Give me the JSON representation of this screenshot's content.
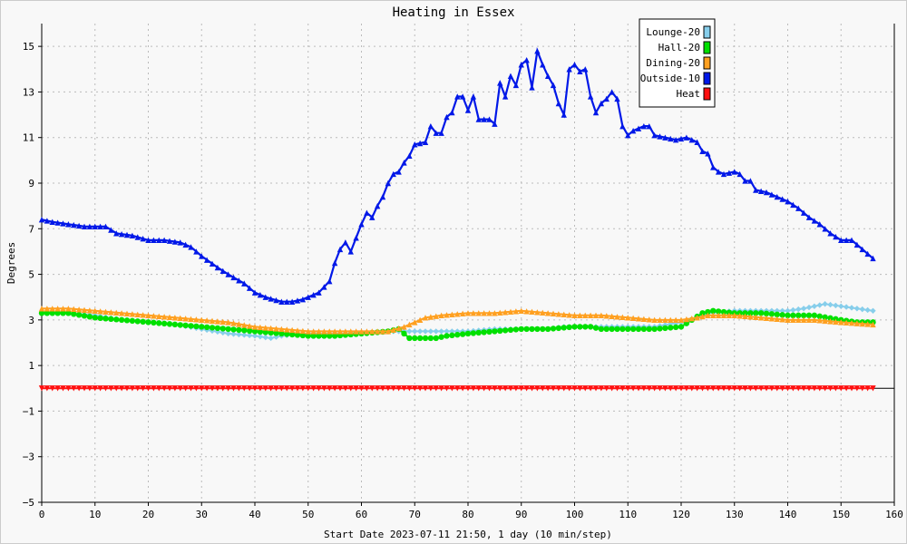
{
  "chart_data": {
    "type": "line",
    "title": "Heating in Essex",
    "xlabel": "Start Date 2023-07-11 21:50, 1 day (10 min/step)",
    "ylabel": "Degrees",
    "xlim": [
      0,
      160
    ],
    "ylim": [
      -5,
      16
    ],
    "x_ticks": [
      0,
      10,
      20,
      30,
      40,
      50,
      60,
      70,
      80,
      90,
      100,
      110,
      120,
      130,
      140,
      150,
      160
    ],
    "y_ticks": [
      -5,
      -3,
      -1,
      1,
      3,
      5,
      7,
      9,
      11,
      13,
      15
    ],
    "grid": true,
    "legend_position": "top-right",
    "series": [
      {
        "name": "Lounge-20",
        "color": "#87ceeb",
        "marker": "diamond",
        "points": [
          [
            0,
            3.3
          ],
          [
            5,
            3.3
          ],
          [
            10,
            3.2
          ],
          [
            15,
            3.0
          ],
          [
            20,
            2.9
          ],
          [
            25,
            2.8
          ],
          [
            30,
            2.6
          ],
          [
            35,
            2.4
          ],
          [
            40,
            2.3
          ],
          [
            43,
            2.2
          ],
          [
            45,
            2.3
          ],
          [
            50,
            2.4
          ],
          [
            55,
            2.4
          ],
          [
            60,
            2.4
          ],
          [
            65,
            2.5
          ],
          [
            70,
            2.5
          ],
          [
            75,
            2.5
          ],
          [
            80,
            2.5
          ],
          [
            85,
            2.6
          ],
          [
            90,
            2.6
          ],
          [
            95,
            2.6
          ],
          [
            98,
            2.7
          ],
          [
            100,
            2.7
          ],
          [
            105,
            2.7
          ],
          [
            110,
            2.7
          ],
          [
            115,
            2.7
          ],
          [
            120,
            2.9
          ],
          [
            123,
            3.1
          ],
          [
            125,
            3.3
          ],
          [
            130,
            3.4
          ],
          [
            135,
            3.4
          ],
          [
            140,
            3.4
          ],
          [
            143,
            3.5
          ],
          [
            145,
            3.6
          ],
          [
            147,
            3.7
          ],
          [
            150,
            3.6
          ],
          [
            153,
            3.5
          ],
          [
            156,
            3.4
          ]
        ]
      },
      {
        "name": "Hall-20",
        "color": "#00e000",
        "marker": "circle",
        "points": [
          [
            0,
            3.3
          ],
          [
            5,
            3.3
          ],
          [
            10,
            3.1
          ],
          [
            15,
            3.0
          ],
          [
            20,
            2.9
          ],
          [
            25,
            2.8
          ],
          [
            30,
            2.7
          ],
          [
            35,
            2.6
          ],
          [
            40,
            2.5
          ],
          [
            45,
            2.4
          ],
          [
            50,
            2.3
          ],
          [
            55,
            2.3
          ],
          [
            60,
            2.4
          ],
          [
            65,
            2.5
          ],
          [
            67,
            2.6
          ],
          [
            68,
            2.4
          ],
          [
            69,
            2.2
          ],
          [
            70,
            2.2
          ],
          [
            72,
            2.2
          ],
          [
            74,
            2.2
          ],
          [
            76,
            2.3
          ],
          [
            80,
            2.4
          ],
          [
            85,
            2.5
          ],
          [
            90,
            2.6
          ],
          [
            95,
            2.6
          ],
          [
            100,
            2.7
          ],
          [
            103,
            2.7
          ],
          [
            105,
            2.6
          ],
          [
            110,
            2.6
          ],
          [
            115,
            2.6
          ],
          [
            120,
            2.7
          ],
          [
            122,
            3.0
          ],
          [
            124,
            3.3
          ],
          [
            126,
            3.4
          ],
          [
            130,
            3.3
          ],
          [
            135,
            3.3
          ],
          [
            140,
            3.2
          ],
          [
            145,
            3.2
          ],
          [
            150,
            3.0
          ],
          [
            153,
            2.9
          ],
          [
            156,
            2.9
          ]
        ]
      },
      {
        "name": "Dining-20",
        "color": "#ffa020",
        "marker": "triangle-up",
        "points": [
          [
            0,
            3.5
          ],
          [
            5,
            3.5
          ],
          [
            10,
            3.4
          ],
          [
            15,
            3.3
          ],
          [
            20,
            3.2
          ],
          [
            25,
            3.1
          ],
          [
            30,
            3.0
          ],
          [
            35,
            2.9
          ],
          [
            40,
            2.7
          ],
          [
            45,
            2.6
          ],
          [
            50,
            2.5
          ],
          [
            55,
            2.5
          ],
          [
            60,
            2.5
          ],
          [
            65,
            2.5
          ],
          [
            68,
            2.7
          ],
          [
            70,
            2.9
          ],
          [
            72,
            3.1
          ],
          [
            75,
            3.2
          ],
          [
            80,
            3.3
          ],
          [
            85,
            3.3
          ],
          [
            90,
            3.4
          ],
          [
            95,
            3.3
          ],
          [
            100,
            3.2
          ],
          [
            105,
            3.2
          ],
          [
            110,
            3.1
          ],
          [
            115,
            3.0
          ],
          [
            120,
            3.0
          ],
          [
            123,
            3.1
          ],
          [
            125,
            3.2
          ],
          [
            130,
            3.2
          ],
          [
            135,
            3.1
          ],
          [
            140,
            3.0
          ],
          [
            145,
            3.0
          ],
          [
            150,
            2.9
          ],
          [
            156,
            2.8
          ]
        ]
      },
      {
        "name": "Outside-10",
        "color": "#0018e8",
        "marker": "triangle-up",
        "points": [
          [
            0,
            7.4
          ],
          [
            2,
            7.3
          ],
          [
            5,
            7.2
          ],
          [
            8,
            7.1
          ],
          [
            10,
            7.1
          ],
          [
            12,
            7.1
          ],
          [
            14,
            6.8
          ],
          [
            17,
            6.7
          ],
          [
            20,
            6.5
          ],
          [
            23,
            6.5
          ],
          [
            26,
            6.4
          ],
          [
            28,
            6.2
          ],
          [
            30,
            5.8
          ],
          [
            33,
            5.3
          ],
          [
            35,
            5.0
          ],
          [
            38,
            4.6
          ],
          [
            40,
            4.2
          ],
          [
            42,
            4.0
          ],
          [
            45,
            3.8
          ],
          [
            47,
            3.8
          ],
          [
            49,
            3.9
          ],
          [
            52,
            4.2
          ],
          [
            54,
            4.7
          ],
          [
            55,
            5.5
          ],
          [
            56,
            6.1
          ],
          [
            57,
            6.4
          ],
          [
            58,
            6.0
          ],
          [
            59,
            6.6
          ],
          [
            60,
            7.2
          ],
          [
            61,
            7.7
          ],
          [
            62,
            7.5
          ],
          [
            63,
            8.0
          ],
          [
            64,
            8.4
          ],
          [
            65,
            9.0
          ],
          [
            66,
            9.4
          ],
          [
            67,
            9.5
          ],
          [
            68,
            9.9
          ],
          [
            69,
            10.2
          ],
          [
            70,
            10.7
          ],
          [
            72,
            10.8
          ],
          [
            73,
            11.5
          ],
          [
            74,
            11.2
          ],
          [
            75,
            11.2
          ],
          [
            76,
            11.9
          ],
          [
            77,
            12.1
          ],
          [
            78,
            12.8
          ],
          [
            79,
            12.8
          ],
          [
            80,
            12.2
          ],
          [
            81,
            12.8
          ],
          [
            82,
            11.8
          ],
          [
            83,
            11.8
          ],
          [
            84,
            11.8
          ],
          [
            85,
            11.6
          ],
          [
            86,
            13.4
          ],
          [
            87,
            12.8
          ],
          [
            88,
            13.7
          ],
          [
            89,
            13.3
          ],
          [
            90,
            14.2
          ],
          [
            91,
            14.4
          ],
          [
            92,
            13.2
          ],
          [
            93,
            14.8
          ],
          [
            94,
            14.2
          ],
          [
            95,
            13.7
          ],
          [
            96,
            13.3
          ],
          [
            97,
            12.5
          ],
          [
            98,
            12.0
          ],
          [
            99,
            14.0
          ],
          [
            100,
            14.2
          ],
          [
            101,
            13.9
          ],
          [
            102,
            14.0
          ],
          [
            103,
            12.8
          ],
          [
            104,
            12.1
          ],
          [
            105,
            12.5
          ],
          [
            106,
            12.7
          ],
          [
            107,
            13.0
          ],
          [
            108,
            12.7
          ],
          [
            109,
            11.5
          ],
          [
            110,
            11.1
          ],
          [
            111,
            11.3
          ],
          [
            112,
            11.4
          ],
          [
            113,
            11.5
          ],
          [
            114,
            11.5
          ],
          [
            115,
            11.1
          ],
          [
            117,
            11.0
          ],
          [
            119,
            10.9
          ],
          [
            121,
            11.0
          ],
          [
            123,
            10.8
          ],
          [
            124,
            10.4
          ],
          [
            125,
            10.3
          ],
          [
            126,
            9.7
          ],
          [
            127,
            9.5
          ],
          [
            128,
            9.4
          ],
          [
            130,
            9.5
          ],
          [
            131,
            9.4
          ],
          [
            132,
            9.1
          ],
          [
            133,
            9.1
          ],
          [
            134,
            8.7
          ],
          [
            136,
            8.6
          ],
          [
            137,
            8.5
          ],
          [
            138,
            8.4
          ],
          [
            140,
            8.2
          ],
          [
            142,
            7.9
          ],
          [
            144,
            7.5
          ],
          [
            146,
            7.2
          ],
          [
            148,
            6.8
          ],
          [
            150,
            6.5
          ],
          [
            152,
            6.5
          ],
          [
            154,
            6.1
          ],
          [
            155,
            5.9
          ],
          [
            156,
            5.7
          ]
        ]
      },
      {
        "name": "Heat",
        "color": "#ff1010",
        "marker": "triangle-down",
        "points": [
          [
            0,
            0.0
          ],
          [
            156,
            0.0
          ]
        ]
      }
    ]
  }
}
